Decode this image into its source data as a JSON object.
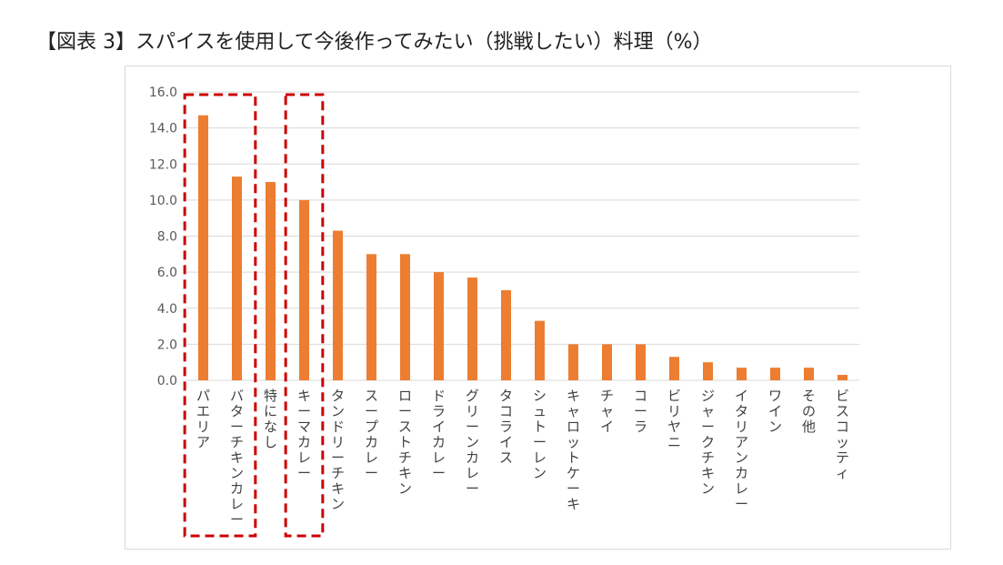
{
  "title": "【図表 3】スパイスを使用して今後作ってみたい（挑戦したい）料理（%）",
  "colors": {
    "bar": "#ed7d31",
    "grid": "#d9d9d9",
    "highlight": "#cc0000"
  },
  "chart_data": {
    "type": "bar",
    "title": "【図表 3】スパイスを使用して今後作ってみたい（挑戦したい）料理（%）",
    "xlabel": "",
    "ylabel": "",
    "ylim": [
      0,
      16
    ],
    "yticks": [
      "0.0",
      "2.0",
      "4.0",
      "6.0",
      "8.0",
      "10.0",
      "12.0",
      "14.0",
      "16.0"
    ],
    "grid": true,
    "categories": [
      "パエリア",
      "バターチキンカレー",
      "特になし",
      "キーマカレー",
      "タンドリーチキン",
      "スープカレー",
      "ローストチキン",
      "ドライカレー",
      "グリーンカレー",
      "タコライス",
      "シュトーレン",
      "キャロットケーキ",
      "チャイ",
      "コーラ",
      "ビリヤニ",
      "ジャークチキン",
      "イタリアンカレー",
      "ワイン",
      "その他",
      "ビスコッティ"
    ],
    "values": [
      14.7,
      11.3,
      11.0,
      10.0,
      8.3,
      7.0,
      7.0,
      6.0,
      5.7,
      5.0,
      3.3,
      2.0,
      2.0,
      2.0,
      1.3,
      1.0,
      0.7,
      0.7,
      0.7,
      0.3
    ],
    "highlight_groups": [
      [
        "パエリア",
        "バターチキンカレー"
      ],
      [
        "キーマカレー"
      ]
    ]
  }
}
